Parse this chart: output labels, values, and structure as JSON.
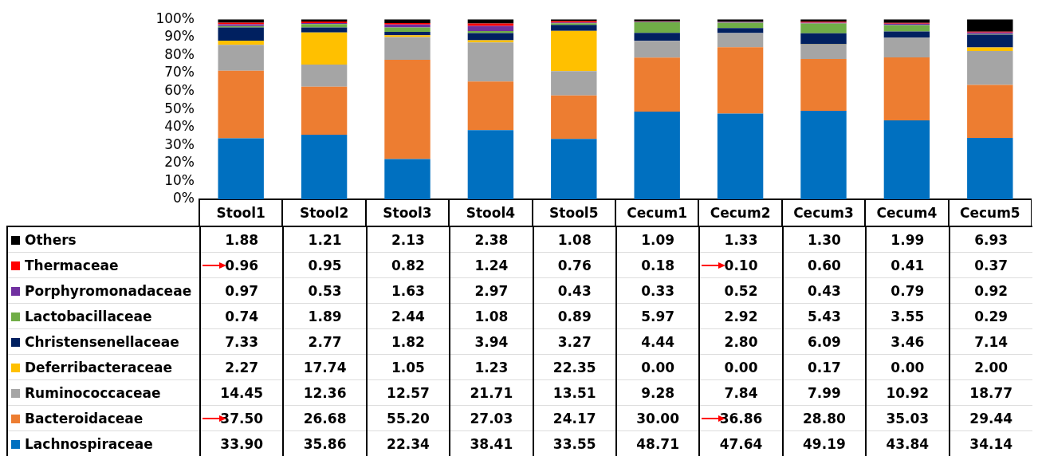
{
  "chart_data": {
    "type": "bar",
    "stacked": true,
    "categories": [
      "Stool1",
      "Stool2",
      "Stool3",
      "Stool4",
      "Stool5",
      "Cecum1",
      "Cecum2",
      "Cecum3",
      "Cecum4",
      "Cecum5"
    ],
    "ylim": [
      0,
      100
    ],
    "yticks": [
      {
        "value": 0,
        "label": "0%"
      },
      {
        "value": 10,
        "label": "10%"
      },
      {
        "value": 20,
        "label": "20%"
      },
      {
        "value": 30,
        "label": "30%"
      },
      {
        "value": 40,
        "label": "40%"
      },
      {
        "value": 50,
        "label": "50%"
      },
      {
        "value": 60,
        "label": "60%"
      },
      {
        "value": 70,
        "label": "70%"
      },
      {
        "value": 80,
        "label": "80%"
      },
      {
        "value": 90,
        "label": "90%"
      },
      {
        "value": 100,
        "label": "100%"
      }
    ],
    "legend": "bottom",
    "data_labels": true,
    "series": [
      {
        "name": "Lachnospiraceae",
        "color": "#0070c0",
        "values": [
          33.9,
          35.86,
          22.34,
          38.41,
          33.55,
          48.71,
          47.64,
          49.19,
          43.84,
          34.14
        ],
        "value_labels": [
          "33.90",
          "35.86",
          "22.34",
          "38.41",
          "33.55",
          "48.71",
          "47.64",
          "49.19",
          "43.84",
          "34.14"
        ]
      },
      {
        "name": "Bacteroidaceae",
        "color": "#ed7d31",
        "values": [
          37.5,
          26.68,
          55.2,
          27.03,
          24.17,
          30,
          36.86,
          28.8,
          35.03,
          29.44
        ],
        "value_labels": [
          "37.50",
          "26.68",
          "55.20",
          "27.03",
          "24.17",
          "30.00",
          "36.86",
          "28.80",
          "35.03",
          "29.44"
        ]
      },
      {
        "name": "Ruminococcaceae",
        "color": "#a5a5a5",
        "values": [
          14.45,
          12.36,
          12.57,
          21.71,
          13.51,
          9.28,
          7.84,
          7.99,
          10.92,
          18.77
        ],
        "value_labels": [
          "14.45",
          "12.36",
          "12.57",
          "21.71",
          "13.51",
          "9.28",
          "7.84",
          "7.99",
          "10.92",
          "18.77"
        ]
      },
      {
        "name": "Deferribacteraceae",
        "color": "#ffc000",
        "values": [
          2.27,
          17.74,
          1.05,
          1.23,
          22.35,
          0,
          0,
          0.17,
          0,
          2
        ],
        "value_labels": [
          "2.27",
          "17.74",
          "1.05",
          "1.23",
          "22.35",
          "0.00",
          "0.00",
          "0.17",
          "0.00",
          "2.00"
        ]
      },
      {
        "name": "Christensenellaceae",
        "color": "#002060",
        "values": [
          7.33,
          2.77,
          1.82,
          3.94,
          3.27,
          4.44,
          2.8,
          6.09,
          3.46,
          7.14
        ],
        "value_labels": [
          "7.33",
          "2.77",
          "1.82",
          "3.94",
          "3.27",
          "4.44",
          "2.80",
          "6.09",
          "3.46",
          "7.14"
        ]
      },
      {
        "name": "Lactobacillaceae",
        "color": "#70ad47",
        "values": [
          0.74,
          1.89,
          2.44,
          1.08,
          0.89,
          5.97,
          2.92,
          5.43,
          3.55,
          0.29
        ],
        "value_labels": [
          "0.74",
          "1.89",
          "2.44",
          "1.08",
          "0.89",
          "5.97",
          "2.92",
          "5.43",
          "3.55",
          "0.29"
        ]
      },
      {
        "name": "Porphyromonadaceae",
        "color": "#7030a0",
        "values": [
          0.97,
          0.53,
          1.63,
          2.97,
          0.43,
          0.33,
          0.52,
          0.43,
          0.79,
          0.92
        ],
        "value_labels": [
          "0.97",
          "0.53",
          "1.63",
          "2.97",
          "0.43",
          "0.33",
          "0.52",
          "0.43",
          "0.79",
          "0.92"
        ]
      },
      {
        "name": "Thermaceae",
        "color": "#ff0000",
        "values": [
          0.96,
          0.95,
          0.82,
          1.24,
          0.76,
          0.18,
          0.1,
          0.6,
          0.41,
          0.37
        ],
        "value_labels": [
          "0.96",
          "0.95",
          "0.82",
          "1.24",
          "0.76",
          "0.18",
          "0.10",
          "0.60",
          "0.41",
          "0.37"
        ]
      },
      {
        "name": "Others",
        "color": "#000000",
        "values": [
          1.88,
          1.21,
          2.13,
          2.38,
          1.08,
          1.09,
          1.33,
          1.3,
          1.99,
          6.93
        ],
        "value_labels": [
          "1.88",
          "1.21",
          "2.13",
          "2.38",
          "1.08",
          "1.09",
          "1.33",
          "1.30",
          "1.99",
          "6.93"
        ]
      }
    ]
  }
}
